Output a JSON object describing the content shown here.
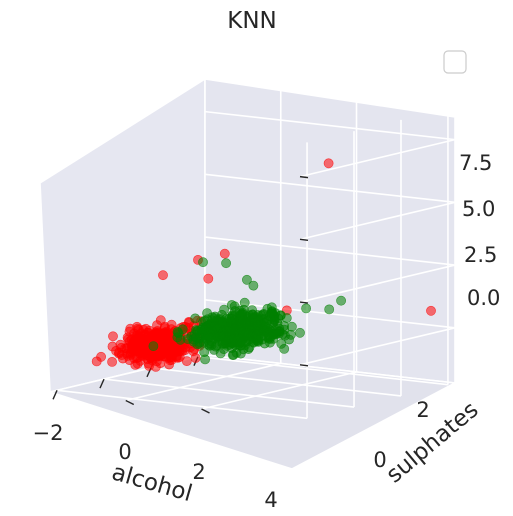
{
  "colors": {
    "background": "#ffffff",
    "pane_left": "#e6e7f1",
    "pane_back": "#e4e5ef",
    "pane_floor": "#e1e2ec",
    "grid": "#ffffff",
    "class_red": "#ff0000",
    "class_green": "#008000",
    "text": "#262626"
  },
  "chart_data": {
    "type": "scatter",
    "projection": "3d",
    "title": "KNN",
    "xlabel": "alcohol",
    "ylabel": "sulphates",
    "zlabel": "",
    "x_ticks": [
      "−2",
      "0",
      "2",
      "4"
    ],
    "x_tick_values": [
      -2,
      0,
      2,
      4
    ],
    "y_ticks": [
      "0",
      "2"
    ],
    "y_tick_values": [
      0,
      2
    ],
    "z_ticks": [
      "0.0",
      "2.5",
      "5.0",
      "7.5"
    ],
    "z_tick_values": [
      0.0,
      2.5,
      5.0,
      7.5
    ],
    "xlim": [
      -2.3,
      4.3
    ],
    "ylim": [
      -2.0,
      4.6
    ],
    "zlim": [
      -2.2,
      8.8
    ],
    "grid": true,
    "legend": {
      "placement": "top-right",
      "entries": []
    },
    "marker_alpha": 0.55,
    "series": [
      {
        "color": "#ff0000",
        "approx_point_count": 380,
        "cluster_x_range": [
          -2.1,
          1.5
        ],
        "cluster_y_range": [
          -1.3,
          0.5
        ],
        "cluster_z_range": [
          -1.5,
          0.6
        ],
        "sample_points": [
          {
            "x": -1.9,
            "y": -0.9,
            "z": -0.7
          },
          {
            "x": -1.6,
            "y": -1.2,
            "z": -1.0
          },
          {
            "x": -1.4,
            "y": -0.3,
            "z": -0.2
          },
          {
            "x": -1.0,
            "y": -0.6,
            "z": -0.5
          },
          {
            "x": -0.6,
            "y": -0.2,
            "z": 0.1
          },
          {
            "x": -1.2,
            "y": 0.3,
            "z": 2.6
          },
          {
            "x": -1.0,
            "y": 1.1,
            "z": 3.3
          },
          {
            "x": -0.5,
            "y": 1.5,
            "z": 3.5
          },
          {
            "x": -0.4,
            "y": 1.0,
            "z": 2.4
          },
          {
            "x": 0.0,
            "y": -0.5,
            "z": 0.4
          },
          {
            "x": 0.5,
            "y": -0.9,
            "z": -1.0
          },
          {
            "x": 1.2,
            "y": -1.0,
            "z": -1.1
          },
          {
            "x": 2.3,
            "y": 1.4,
            "z": 0.6
          },
          {
            "x": 3.6,
            "y": 4.4,
            "z": 0.8
          },
          {
            "x": -0.6,
            "y": 4.3,
            "z": 7.6
          }
        ]
      },
      {
        "color": "#008000",
        "approx_point_count": 420,
        "cluster_x_range": [
          -1.0,
          3.6
        ],
        "cluster_y_range": [
          -0.6,
          2.0
        ],
        "cluster_z_range": [
          -1.2,
          1.0
        ],
        "sample_points": [
          {
            "x": -0.2,
            "y": 0.2,
            "z": 0.2
          },
          {
            "x": 0.4,
            "y": 0.6,
            "z": 0.5
          },
          {
            "x": 1.0,
            "y": 0.4,
            "z": 0.0
          },
          {
            "x": 1.6,
            "y": 0.9,
            "z": 0.3
          },
          {
            "x": 2.2,
            "y": 1.3,
            "z": 0.4
          },
          {
            "x": 2.8,
            "y": 1.6,
            "z": 0.6
          },
          {
            "x": 3.3,
            "y": 1.9,
            "z": 0.5
          },
          {
            "x": 1.9,
            "y": 0.2,
            "z": -0.8
          },
          {
            "x": 0.2,
            "y": 1.1,
            "z": 2.9
          },
          {
            "x": 0.6,
            "y": 1.4,
            "z": 2.2
          },
          {
            "x": -0.3,
            "y": 0.8,
            "z": 3.0
          },
          {
            "x": 1.2,
            "y": 1.2,
            "z": 1.8
          },
          {
            "x": 2.5,
            "y": 0.4,
            "z": -0.9
          },
          {
            "x": -0.8,
            "y": -0.2,
            "z": -0.4
          },
          {
            "x": 3.0,
            "y": 2.4,
            "z": 1.0
          }
        ]
      }
    ]
  }
}
